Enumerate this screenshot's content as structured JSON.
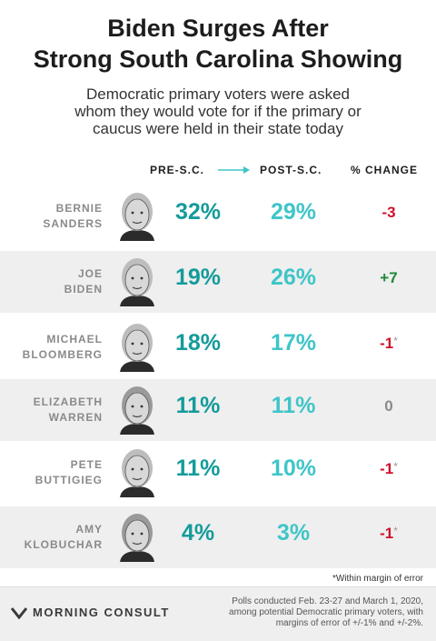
{
  "title_line1": "Biden Surges After",
  "title_line2": "Strong South Carolina Showing",
  "subtitle_line1": "Democratic primary voters were asked",
  "subtitle_line2": "whom they would vote for if the primary or",
  "subtitle_line3": "caucus were held in their state today",
  "headers": {
    "pre": "PRE-S.C.",
    "post": "POST-S.C.",
    "change": "% CHANGE"
  },
  "colors": {
    "pre": "#149b9a",
    "post": "#3fc5c8",
    "negative": "#d0112b",
    "positive": "#1f8a3a",
    "neutral": "#8a8a8a"
  },
  "chart_data": {
    "type": "table",
    "columns": [
      "PRE-S.C.",
      "POST-S.C.",
      "% CHANGE"
    ],
    "rows": [
      {
        "line1": "BERNIE",
        "line2": "SANDERS",
        "pre": "32%",
        "post": "29%",
        "change": "-3",
        "star": "",
        "sign": "negative"
      },
      {
        "line1": "JOE",
        "line2": "BIDEN",
        "pre": "19%",
        "post": "26%",
        "change": "+7",
        "star": "",
        "sign": "positive"
      },
      {
        "line1": "MICHAEL",
        "line2": "BLOOMBERG",
        "pre": "18%",
        "post": "17%",
        "change": "-1",
        "star": "*",
        "sign": "negative"
      },
      {
        "line1": "ELIZABETH",
        "line2": "WARREN",
        "pre": "11%",
        "post": "11%",
        "change": "0",
        "star": "",
        "sign": "neutral"
      },
      {
        "line1": "PETE",
        "line2": "BUTTIGIEG",
        "pre": "11%",
        "post": "10%",
        "change": "-1",
        "star": "*",
        "sign": "negative"
      },
      {
        "line1": "AMY",
        "line2": "KLOBUCHAR",
        "pre": "4%",
        "post": "3%",
        "change": "-1",
        "star": "*",
        "sign": "negative"
      }
    ]
  },
  "footnote": "*Within margin of error",
  "logo_text": "MORNING CONSULT",
  "source_line1": "Polls conducted Feb. 23-27 and March 1, 2020,",
  "source_line2": "among potential Democratic primary voters, with",
  "source_line3": "margins of error of +/-1% and +/-2%."
}
